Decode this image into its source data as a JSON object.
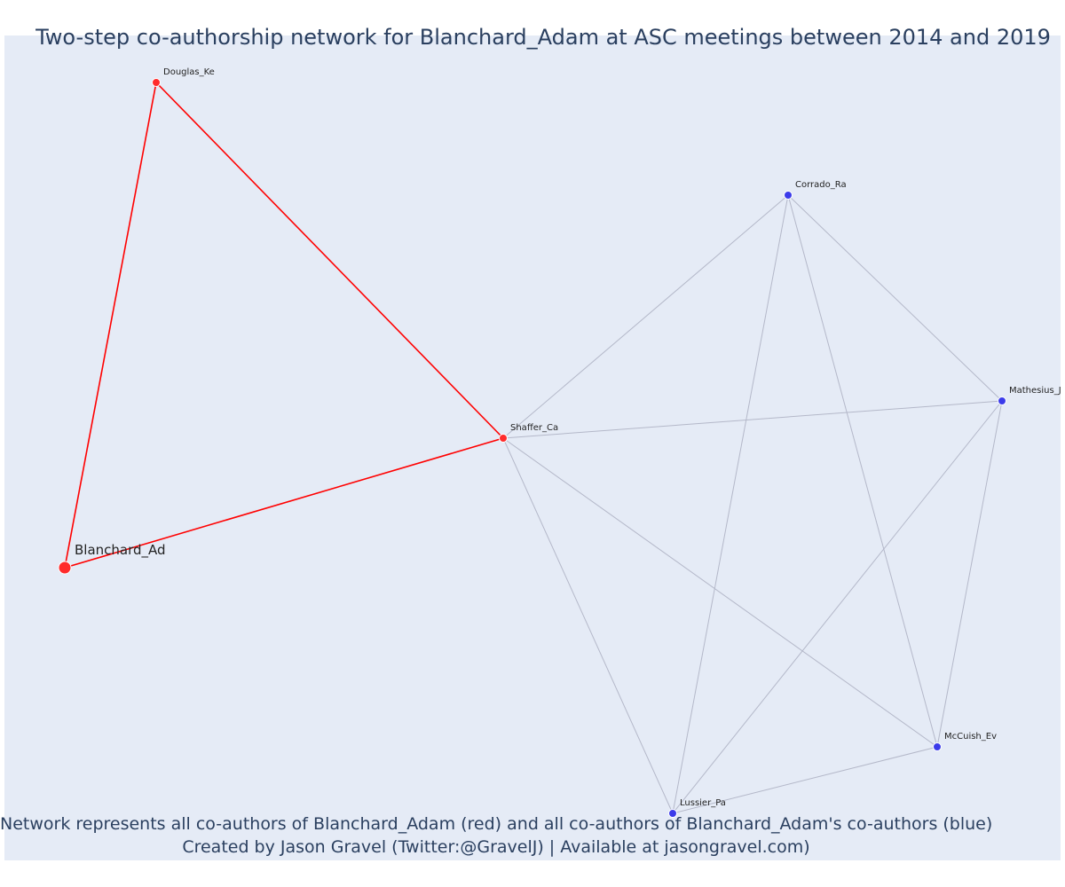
{
  "title": "Two-step co-authorship network for Blanchard_Adam at ASC meetings between 2014 and 2019",
  "caption": {
    "line1": "Network represents all co-authors of Blanchard_Adam (red) and all co-authors of Blanchard_Adam's co-authors (blue)",
    "line2": "Created by Jason Gravel (Twitter:@GravelJ) | Available at jasongravel.com)"
  },
  "colors": {
    "plot_background": "#e5ebf6",
    "first_degree": "#ff2b2b",
    "second_degree": "#3b3bea",
    "focal_edge": "#ff0000",
    "other_edge": "#b4b8c9",
    "title_text": "#2a3f5f"
  },
  "chart_data": {
    "type": "network",
    "focal_author": "Blanchard_Ad",
    "nodes": [
      {
        "id": "Blanchard_Ad",
        "label": "Blanchard_Ad",
        "group": "focal"
      },
      {
        "id": "Douglas_Ke",
        "label": "Douglas_Ke",
        "group": "co-author"
      },
      {
        "id": "Shaffer_Ca",
        "label": "Shaffer_Ca",
        "group": "co-author"
      },
      {
        "id": "Corrado_Ra",
        "label": "Corrado_Ra",
        "group": "co-author-of-co-author"
      },
      {
        "id": "Mathesius_Je",
        "label": "Mathesius_Je",
        "group": "co-author-of-co-author"
      },
      {
        "id": "McCuish_Ev",
        "label": "McCuish_Ev",
        "group": "co-author-of-co-author"
      },
      {
        "id": "Lussier_Pa",
        "label": "Lussier_Pa",
        "group": "co-author-of-co-author"
      }
    ],
    "edges": [
      {
        "source": "Blanchard_Ad",
        "target": "Douglas_Ke",
        "type": "focal"
      },
      {
        "source": "Douglas_Ke",
        "target": "Shaffer_Ca",
        "type": "focal"
      },
      {
        "source": "Blanchard_Ad",
        "target": "Shaffer_Ca",
        "type": "focal"
      },
      {
        "source": "Shaffer_Ca",
        "target": "Corrado_Ra",
        "type": "other"
      },
      {
        "source": "Shaffer_Ca",
        "target": "Mathesius_Je",
        "type": "other"
      },
      {
        "source": "Shaffer_Ca",
        "target": "McCuish_Ev",
        "type": "other"
      },
      {
        "source": "Shaffer_Ca",
        "target": "Lussier_Pa",
        "type": "other"
      },
      {
        "source": "Corrado_Ra",
        "target": "Mathesius_Je",
        "type": "other"
      },
      {
        "source": "Corrado_Ra",
        "target": "McCuish_Ev",
        "type": "other"
      },
      {
        "source": "Corrado_Ra",
        "target": "Lussier_Pa",
        "type": "other"
      },
      {
        "source": "Mathesius_Je",
        "target": "McCuish_Ev",
        "type": "other"
      },
      {
        "source": "Mathesius_Je",
        "target": "Lussier_Pa",
        "type": "other"
      },
      {
        "source": "McCuish_Ev",
        "target": "Lussier_Pa",
        "type": "other"
      }
    ]
  }
}
